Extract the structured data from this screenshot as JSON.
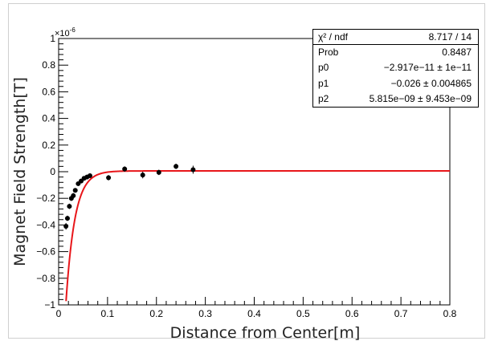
{
  "chart_data": {
    "type": "scatter",
    "xlabel": "Distance from Center[m]",
    "ylabel": "Magnet Field Strength[T]",
    "y_exponent_label": "×10",
    "y_exponent_power": "-6",
    "xlim": [
      0,
      0.8
    ],
    "ylim": [
      -1,
      1
    ],
    "x_ticks": [
      "0",
      "0.1",
      "0.2",
      "0.3",
      "0.4",
      "0.5",
      "0.6",
      "0.7",
      "0.8"
    ],
    "y_ticks": [
      "1",
      "0.8",
      "0.6",
      "0.4",
      "0.2",
      "0",
      "−0.2",
      "−0.4",
      "−0.6",
      "−0.8",
      "−1"
    ],
    "grid": false,
    "points": [
      {
        "x": 0.015,
        "y": -0.41,
        "err": 0.025
      },
      {
        "x": 0.018,
        "y": -0.35,
        "err": 0.02
      },
      {
        "x": 0.022,
        "y": -0.26,
        "err": 0.02
      },
      {
        "x": 0.026,
        "y": -0.2,
        "err": 0.02
      },
      {
        "x": 0.03,
        "y": -0.18,
        "err": 0.02
      },
      {
        "x": 0.034,
        "y": -0.14,
        "err": 0.015
      },
      {
        "x": 0.04,
        "y": -0.09,
        "err": 0.015
      },
      {
        "x": 0.046,
        "y": -0.07,
        "err": 0.015
      },
      {
        "x": 0.052,
        "y": -0.05,
        "err": 0.015
      },
      {
        "x": 0.058,
        "y": -0.04,
        "err": 0.015
      },
      {
        "x": 0.064,
        "y": -0.03,
        "err": 0.015
      },
      {
        "x": 0.102,
        "y": -0.045,
        "err": 0.02
      },
      {
        "x": 0.135,
        "y": 0.02,
        "err": 0.02
      },
      {
        "x": 0.172,
        "y": -0.025,
        "err": 0.025
      },
      {
        "x": 0.205,
        "y": -0.005,
        "err": 0.02
      },
      {
        "x": 0.24,
        "y": 0.04,
        "err": 0.02
      },
      {
        "x": 0.275,
        "y": 0.015,
        "err": 0.03
      }
    ],
    "fit_color": "#e8161a",
    "marker_color": "#000000",
    "fit_params": {
      "p0": -2.917e-11,
      "p1": -0.026,
      "p2": 5.815e-09
    }
  },
  "stats": {
    "rows": [
      {
        "label": "χ² / ndf",
        "value": "8.717 / 14"
      },
      {
        "label": "Prob",
        "value": "0.8487"
      },
      {
        "label": "p0",
        "value": "−2.917e−11 ± 1e−11"
      },
      {
        "label": "p1",
        "value": "−0.026 ± 0.004865"
      },
      {
        "label": "p2",
        "value": "5.815e−09 ± 9.453e−09"
      }
    ]
  }
}
